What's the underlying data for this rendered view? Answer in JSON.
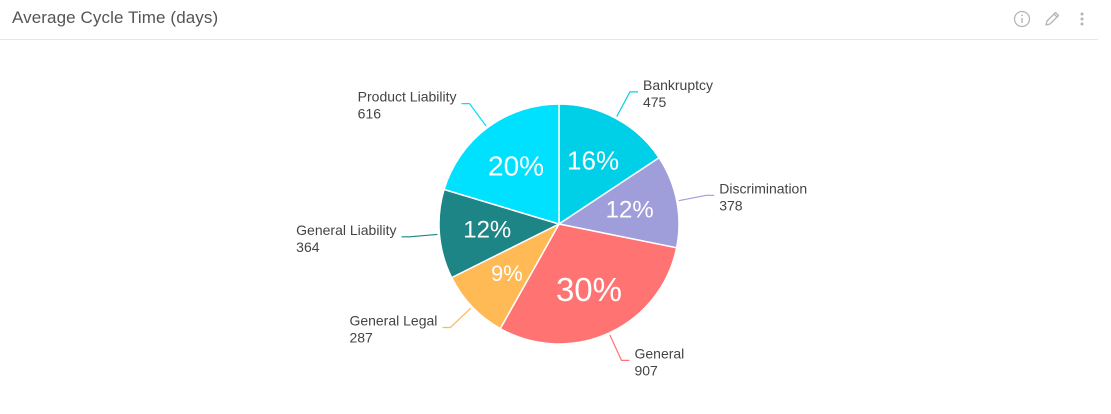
{
  "widget": {
    "title": "Average Cycle Time (days)"
  },
  "toolbar": {
    "info_icon": "info-icon",
    "edit_icon": "pencil-icon",
    "menu_icon": "kebab-menu-icon"
  },
  "chart_data": {
    "type": "pie",
    "title": "Average Cycle Time (days)",
    "slices": [
      {
        "name": "Bankruptcy",
        "value": 475,
        "percent_label": "16%",
        "color": "#00cfe8"
      },
      {
        "name": "Discrimination",
        "value": 378,
        "percent_label": "12%",
        "color": "#a09ddb"
      },
      {
        "name": "General",
        "value": 907,
        "percent_label": "30%",
        "color": "#ff7373"
      },
      {
        "name": "General Legal",
        "value": 287,
        "percent_label": "9%",
        "color": "#ffb955"
      },
      {
        "name": "General Liability",
        "value": 364,
        "percent_label": "12%",
        "color": "#1d8585"
      },
      {
        "name": "Product Liability",
        "value": 616,
        "percent_label": "20%",
        "color": "#00e0ff"
      }
    ]
  }
}
